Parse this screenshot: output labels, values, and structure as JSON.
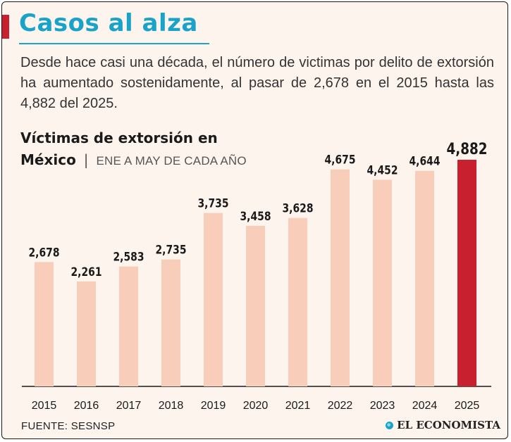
{
  "header": {
    "title": "Casos al alza",
    "subtitle": "Desde hace casi una década, el número de victimas por delito de extorsión ha aumentado sostenidamente, al pasar de 2,678 en el 2015 hasta las 4,882 del 2025."
  },
  "chart_header": {
    "title_line1": "Víctimas de extorsión en",
    "title_line2": "México",
    "separator": "|",
    "period": "ENE A MAY DE CADA AÑO"
  },
  "colors": {
    "accent": "#c8202f",
    "title": "#1aa3c9",
    "bar": "#f8cdb9",
    "highlight_bar": "#c8202f",
    "background": "#fdf4ee"
  },
  "chart_data": {
    "type": "bar",
    "categories": [
      "2015",
      "2016",
      "2017",
      "2018",
      "2019",
      "2020",
      "2021",
      "2022",
      "2023",
      "2024",
      "2025"
    ],
    "values": [
      2678,
      2261,
      2583,
      2735,
      3735,
      3458,
      3628,
      4675,
      4452,
      4644,
      4882
    ],
    "value_labels": [
      "2,678",
      "2,261",
      "2,583",
      "2,735",
      "3,735",
      "3,458",
      "3,628",
      "4,675",
      "4,452",
      "4,644",
      "4,882"
    ],
    "highlight": "2025",
    "xlabel": "",
    "ylabel": "",
    "ylim": [
      0,
      4882
    ],
    "grid": false,
    "legend": "none"
  },
  "footer": {
    "source": "FUENTE: SESNSP",
    "brand": "EL ECONOMISTA",
    "brand_icon": "globe-icon"
  }
}
